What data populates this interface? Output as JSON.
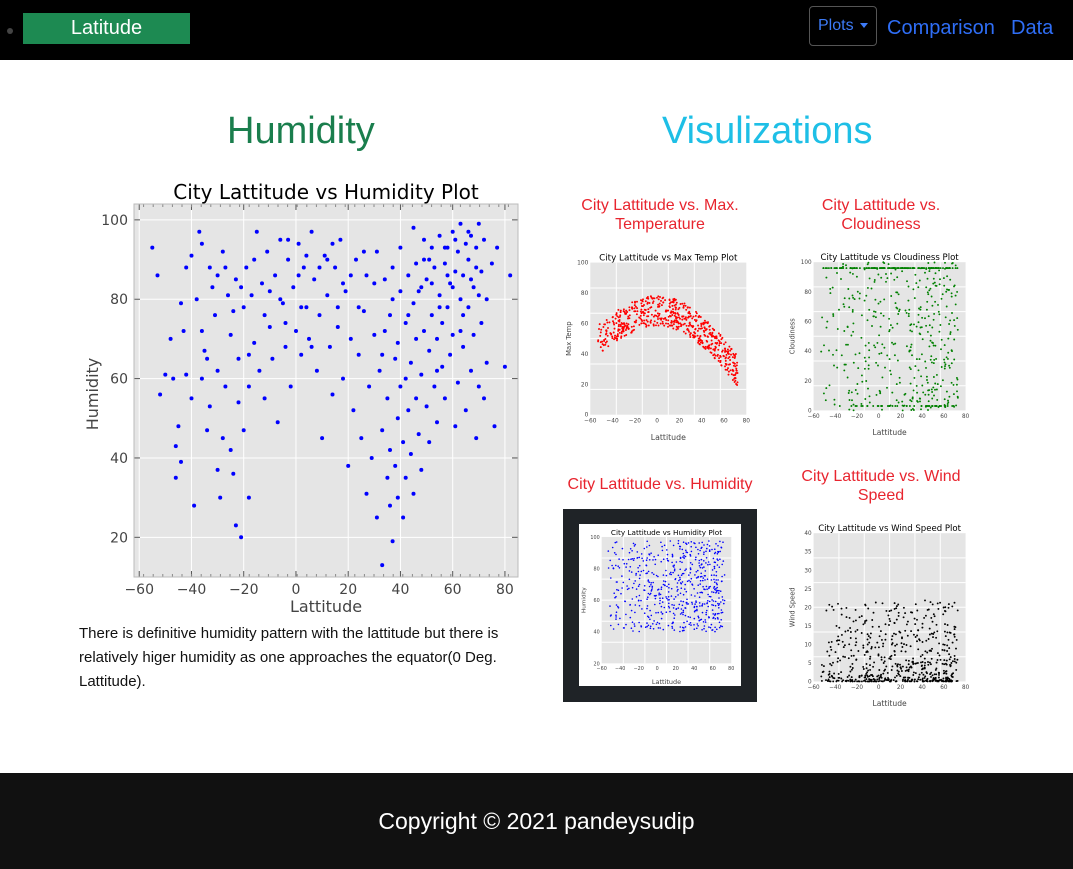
{
  "nav": {
    "brand": "Latitude",
    "plots_label": "Plots",
    "links": [
      "Comparison",
      "Data"
    ]
  },
  "page": {
    "title": "Humidity",
    "title_color": "#1a7e4d",
    "side_title": "Visulizations",
    "side_title_color": "#1ebfe6",
    "description": "There is definitive humidity pattern with the lattitude but there is relatively higer humidity as one approaches the equator(0 Deg. Lattitude).",
    "footer": "Copyright © 2021 pandeysudip"
  },
  "chart_data": {
    "type": "scatter",
    "title": "City Lattitude vs Humidity Plot",
    "xlabel": "Lattitude",
    "ylabel": "Humidity",
    "xlim": [
      -62,
      85
    ],
    "ylim": [
      10,
      104
    ],
    "xticks": [
      -60,
      -40,
      -20,
      0,
      20,
      40,
      60,
      80
    ],
    "yticks": [
      20,
      40,
      60,
      80,
      100
    ],
    "grid": true,
    "color": "#0000ff",
    "points": [
      [
        -55,
        93
      ],
      [
        -53,
        86
      ],
      [
        -52,
        56
      ],
      [
        -48,
        70
      ],
      [
        -47,
        60
      ],
      [
        -46,
        43
      ],
      [
        -46,
        35
      ],
      [
        -45,
        48
      ],
      [
        -44,
        39
      ],
      [
        -43,
        72
      ],
      [
        -42,
        88
      ],
      [
        -42,
        61
      ],
      [
        -40,
        55
      ],
      [
        -39,
        28
      ],
      [
        -38,
        80
      ],
      [
        -37,
        97
      ],
      [
        -36,
        94
      ],
      [
        -36,
        72
      ],
      [
        -35,
        67
      ],
      [
        -34,
        47
      ],
      [
        -33,
        88
      ],
      [
        -33,
        53
      ],
      [
        -32,
        83
      ],
      [
        -31,
        76
      ],
      [
        -30,
        62
      ],
      [
        -30,
        37
      ],
      [
        -29,
        30
      ],
      [
        -28,
        92
      ],
      [
        -28,
        45
      ],
      [
        -27,
        58
      ],
      [
        -26,
        81
      ],
      [
        -25,
        71
      ],
      [
        -25,
        42
      ],
      [
        -24,
        36
      ],
      [
        -23,
        85
      ],
      [
        -23,
        23
      ],
      [
        -22,
        65
      ],
      [
        -22,
        54
      ],
      [
        -21,
        20
      ],
      [
        -20,
        78
      ],
      [
        -20,
        47
      ],
      [
        -19,
        88
      ],
      [
        -18,
        58
      ],
      [
        -18,
        30
      ],
      [
        -17,
        81
      ],
      [
        -16,
        69
      ],
      [
        -15,
        97
      ],
      [
        -14,
        62
      ],
      [
        -13,
        84
      ],
      [
        -12,
        55
      ],
      [
        -11,
        92
      ],
      [
        -10,
        73
      ],
      [
        -9,
        65
      ],
      [
        -8,
        86
      ],
      [
        -7,
        49
      ],
      [
        -6,
        95
      ],
      [
        -5,
        79
      ],
      [
        -4,
        68
      ],
      [
        -3,
        90
      ],
      [
        -2,
        58
      ],
      [
        -1,
        83
      ],
      [
        0,
        72
      ],
      [
        1,
        94
      ],
      [
        2,
        66
      ],
      [
        3,
        88
      ],
      [
        4,
        78
      ],
      [
        5,
        70
      ],
      [
        6,
        97
      ],
      [
        7,
        85
      ],
      [
        8,
        62
      ],
      [
        9,
        76
      ],
      [
        10,
        45
      ],
      [
        11,
        91
      ],
      [
        12,
        81
      ],
      [
        13,
        68
      ],
      [
        14,
        56
      ],
      [
        15,
        88
      ],
      [
        16,
        73
      ],
      [
        17,
        95
      ],
      [
        18,
        60
      ],
      [
        19,
        82
      ],
      [
        20,
        38
      ],
      [
        21,
        70
      ],
      [
        22,
        52
      ],
      [
        23,
        90
      ],
      [
        24,
        66
      ],
      [
        25,
        45
      ],
      [
        26,
        77
      ],
      [
        27,
        31
      ],
      [
        28,
        58
      ],
      [
        29,
        40
      ],
      [
        30,
        84
      ],
      [
        31,
        25
      ],
      [
        32,
        62
      ],
      [
        33,
        47
      ],
      [
        33,
        13
      ],
      [
        34,
        72
      ],
      [
        35,
        35
      ],
      [
        35,
        55
      ],
      [
        36,
        28
      ],
      [
        36,
        42
      ],
      [
        37,
        80
      ],
      [
        37,
        19
      ],
      [
        38,
        65
      ],
      [
        38,
        38
      ],
      [
        39,
        50
      ],
      [
        39,
        30
      ],
      [
        40,
        93
      ],
      [
        40,
        58
      ],
      [
        41,
        44
      ],
      [
        41,
        25
      ],
      [
        42,
        74
      ],
      [
        42,
        35
      ],
      [
        43,
        86
      ],
      [
        43,
        52
      ],
      [
        44,
        64
      ],
      [
        44,
        41
      ],
      [
        45,
        98
      ],
      [
        45,
        31
      ],
      [
        46,
        70
      ],
      [
        46,
        55
      ],
      [
        47,
        82
      ],
      [
        47,
        46
      ],
      [
        48,
        61
      ],
      [
        48,
        37
      ],
      [
        49,
        90
      ],
      [
        49,
        72
      ],
      [
        50,
        53
      ],
      [
        50,
        85
      ],
      [
        51,
        67
      ],
      [
        51,
        44
      ],
      [
        52,
        93
      ],
      [
        52,
        76
      ],
      [
        53,
        58
      ],
      [
        53,
        88
      ],
      [
        54,
        70
      ],
      [
        54,
        49
      ],
      [
        55,
        96
      ],
      [
        55,
        81
      ],
      [
        56,
        63
      ],
      [
        56,
        74
      ],
      [
        57,
        89
      ],
      [
        57,
        55
      ],
      [
        58,
        78
      ],
      [
        58,
        93
      ],
      [
        59,
        66
      ],
      [
        59,
        84
      ],
      [
        60,
        97
      ],
      [
        60,
        71
      ],
      [
        61,
        48
      ],
      [
        61,
        87
      ],
      [
        62,
        92
      ],
      [
        62,
        59
      ],
      [
        63,
        80
      ],
      [
        63,
        99
      ],
      [
        64,
        68
      ],
      [
        64,
        86
      ],
      [
        65,
        94
      ],
      [
        65,
        52
      ],
      [
        66,
        78
      ],
      [
        66,
        90
      ],
      [
        67,
        62
      ],
      [
        67,
        96
      ],
      [
        68,
        83
      ],
      [
        68,
        71
      ],
      [
        69,
        45
      ],
      [
        69,
        93
      ],
      [
        70,
        99
      ],
      [
        70,
        58
      ],
      [
        71,
        87
      ],
      [
        71,
        74
      ],
      [
        72,
        55
      ],
      [
        72,
        95
      ],
      [
        73,
        80
      ],
      [
        73,
        64
      ],
      [
        75,
        89
      ],
      [
        76,
        48
      ],
      [
        77,
        93
      ],
      [
        80,
        63
      ],
      [
        82,
        86
      ],
      [
        -50,
        61
      ],
      [
        -44,
        79
      ],
      [
        -40,
        91
      ],
      [
        -34,
        65
      ],
      [
        -27,
        88
      ],
      [
        -21,
        83
      ],
      [
        -16,
        90
      ],
      [
        -12,
        76
      ],
      [
        -6,
        80
      ],
      [
        -3,
        95
      ],
      [
        1,
        86
      ],
      [
        4,
        91
      ],
      [
        9,
        88
      ],
      [
        14,
        94
      ],
      [
        18,
        84
      ],
      [
        24,
        78
      ],
      [
        27,
        86
      ],
      [
        31,
        92
      ],
      [
        34,
        85
      ],
      [
        37,
        88
      ],
      [
        40,
        82
      ],
      [
        43,
        76
      ],
      [
        46,
        89
      ],
      [
        49,
        95
      ],
      [
        52,
        84
      ],
      [
        55,
        78
      ],
      [
        58,
        86
      ],
      [
        61,
        95
      ],
      [
        64,
        76
      ],
      [
        67,
        85
      ],
      [
        70,
        81
      ],
      [
        -36,
        60
      ],
      [
        -30,
        86
      ],
      [
        -24,
        77
      ],
      [
        -18,
        66
      ],
      [
        -10,
        82
      ],
      [
        -4,
        74
      ],
      [
        2,
        78
      ],
      [
        6,
        68
      ],
      [
        12,
        90
      ],
      [
        16,
        78
      ],
      [
        21,
        86
      ],
      [
        26,
        92
      ],
      [
        30,
        71
      ],
      [
        33,
        66
      ],
      [
        36,
        76
      ],
      [
        39,
        69
      ],
      [
        42,
        60
      ],
      [
        45,
        79
      ],
      [
        48,
        83
      ],
      [
        51,
        90
      ],
      [
        54,
        62
      ],
      [
        57,
        93
      ],
      [
        60,
        83
      ],
      [
        63,
        72
      ],
      [
        66,
        97
      ],
      [
        69,
        88
      ]
    ]
  },
  "thumbs": [
    {
      "caption": "City Lattitude vs. Max. Temperature",
      "title": "City Lattitude vs Max Temp Plot",
      "ylabel": "Max Temp",
      "xlabel": "Lattitude",
      "color": "#ff0000",
      "yticks": [
        "100",
        "80",
        "60",
        "40",
        "20",
        "0"
      ],
      "xticks": [
        "-60",
        "-40",
        "-20",
        "0",
        "20",
        "40",
        "60",
        "80"
      ]
    },
    {
      "caption": "City Lattitude vs. Cloudiness",
      "title": "City Lattitude vs Cloudiness Plot",
      "ylabel": "Cloudiness",
      "xlabel": "Lattitude",
      "color": "#008000",
      "yticks": [
        "100",
        "80",
        "60",
        "40",
        "20",
        "0"
      ],
      "xticks": [
        "-60",
        "-40",
        "-20",
        "0",
        "20",
        "40",
        "60",
        "80"
      ]
    },
    {
      "caption": "City Lattitude vs. Humidity",
      "title": "City Lattitude vs Humidity Plot",
      "ylabel": "Humidity",
      "xlabel": "Lattitude",
      "color": "#0000ff",
      "yticks": [
        "100",
        "80",
        "60",
        "40",
        "20"
      ],
      "xticks": [
        "-60",
        "-40",
        "-20",
        "0",
        "20",
        "40",
        "60",
        "80"
      ]
    },
    {
      "caption": "City Lattitude vs. Wind Speed",
      "title": "City Lattitude vs Wind Speed Plot",
      "ylabel": "Wind Speed",
      "xlabel": "Lattitude",
      "color": "#000000",
      "yticks": [
        "40",
        "35",
        "30",
        "25",
        "20",
        "15",
        "10",
        "5",
        "0"
      ],
      "xticks": [
        "-60",
        "-40",
        "-20",
        "0",
        "20",
        "40",
        "60",
        "80"
      ]
    }
  ]
}
